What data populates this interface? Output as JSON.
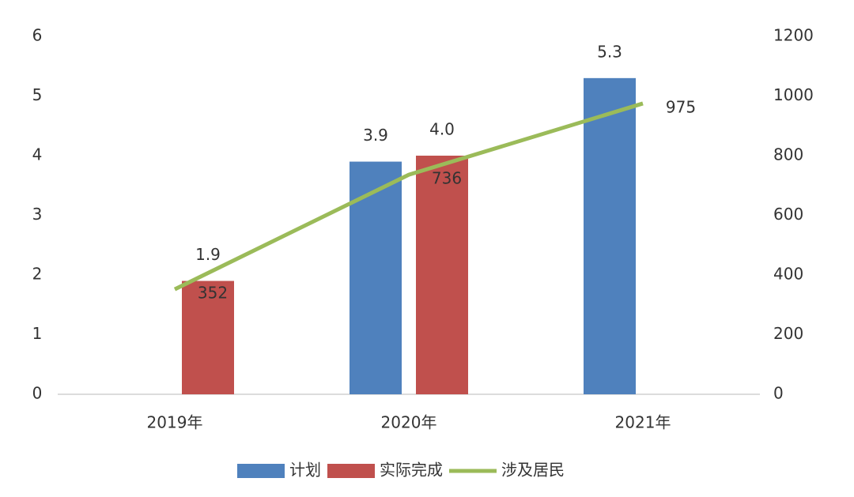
{
  "chart_data": {
    "type": "bar",
    "categories": [
      "2019年",
      "2020年",
      "2021年"
    ],
    "series": [
      {
        "name": "计划",
        "color": "#4f81bd",
        "values": [
          null,
          3.9,
          5.3
        ]
      },
      {
        "name": "实际完成",
        "color": "#c0504d",
        "values": [
          1.9,
          4.0,
          null
        ],
        "value_labels": [
          "1.9",
          "4.0",
          null
        ]
      },
      {
        "name": "涉及居民",
        "color": "#9bbb59",
        "type": "line",
        "axis": "y2",
        "values": [
          352,
          736,
          975
        ]
      }
    ],
    "ylim": [
      0,
      6
    ],
    "yticks": [
      0,
      1,
      2,
      3,
      4,
      5,
      6
    ],
    "y2lim": [
      0,
      1200
    ],
    "y2ticks": [
      0,
      200,
      400,
      600,
      800,
      1000,
      1200
    ],
    "grid": false,
    "legend": "bottom"
  }
}
